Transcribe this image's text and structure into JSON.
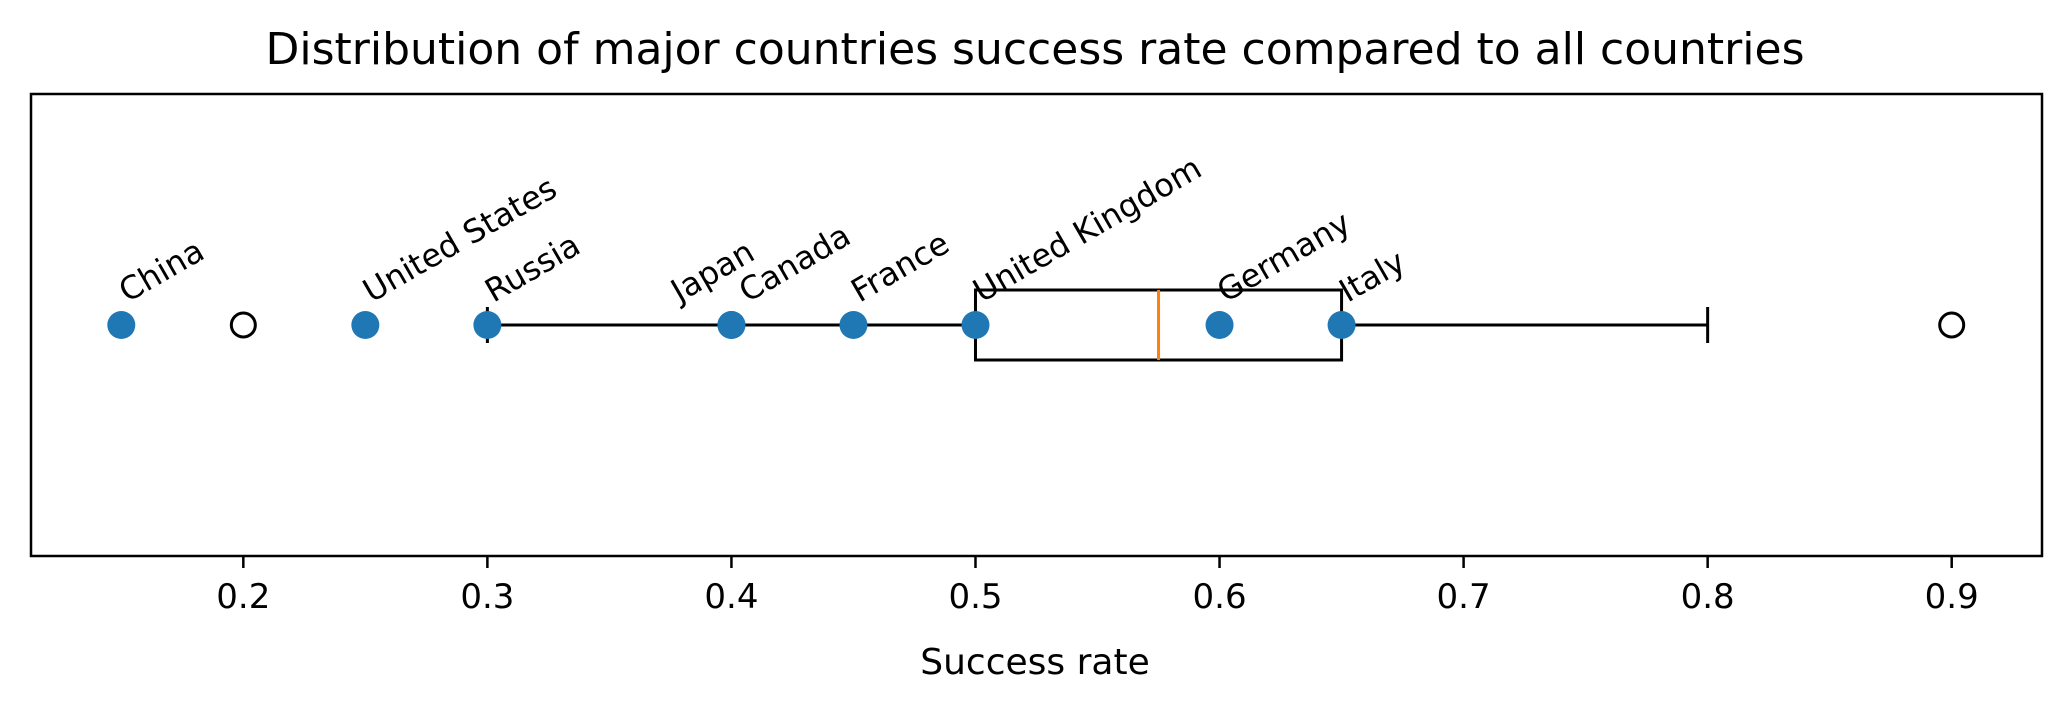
{
  "chart_data": {
    "type": "box",
    "title": "Distribution of major countries success rate compared to all countries",
    "xlabel": "Success rate",
    "ylabel": "",
    "xlim": [
      0.113,
      0.937
    ],
    "xticks": [
      0.2,
      0.3,
      0.4,
      0.5,
      0.6,
      0.7,
      0.8,
      0.9
    ],
    "xtick_labels": [
      "0.2",
      "0.3",
      "0.4",
      "0.5",
      "0.6",
      "0.7",
      "0.8",
      "0.9"
    ],
    "yticks": [],
    "grid": false,
    "legend": "none",
    "box": {
      "q1": 0.5,
      "median": 0.575,
      "q3": 0.65,
      "whisker_low": 0.3,
      "whisker_high": 0.8,
      "outliers": [
        0.2,
        0.9
      ]
    },
    "points": [
      {
        "label": "China",
        "value": 0.15
      },
      {
        "label": "United States",
        "value": 0.25
      },
      {
        "label": "Russia",
        "value": 0.3
      },
      {
        "label": "Japan",
        "value": 0.4
      },
      {
        "label": "Canada",
        "value": 0.4
      },
      {
        "label": "France",
        "value": 0.45
      },
      {
        "label": "United Kingdom",
        "value": 0.5
      },
      {
        "label": "Germany",
        "value": 0.6
      },
      {
        "label": "Italy",
        "value": 0.65
      }
    ],
    "colors": {
      "box": "#000000",
      "median": "#ff7f0e",
      "points": "#1f77b4",
      "outlier_edge": "#000000"
    }
  }
}
